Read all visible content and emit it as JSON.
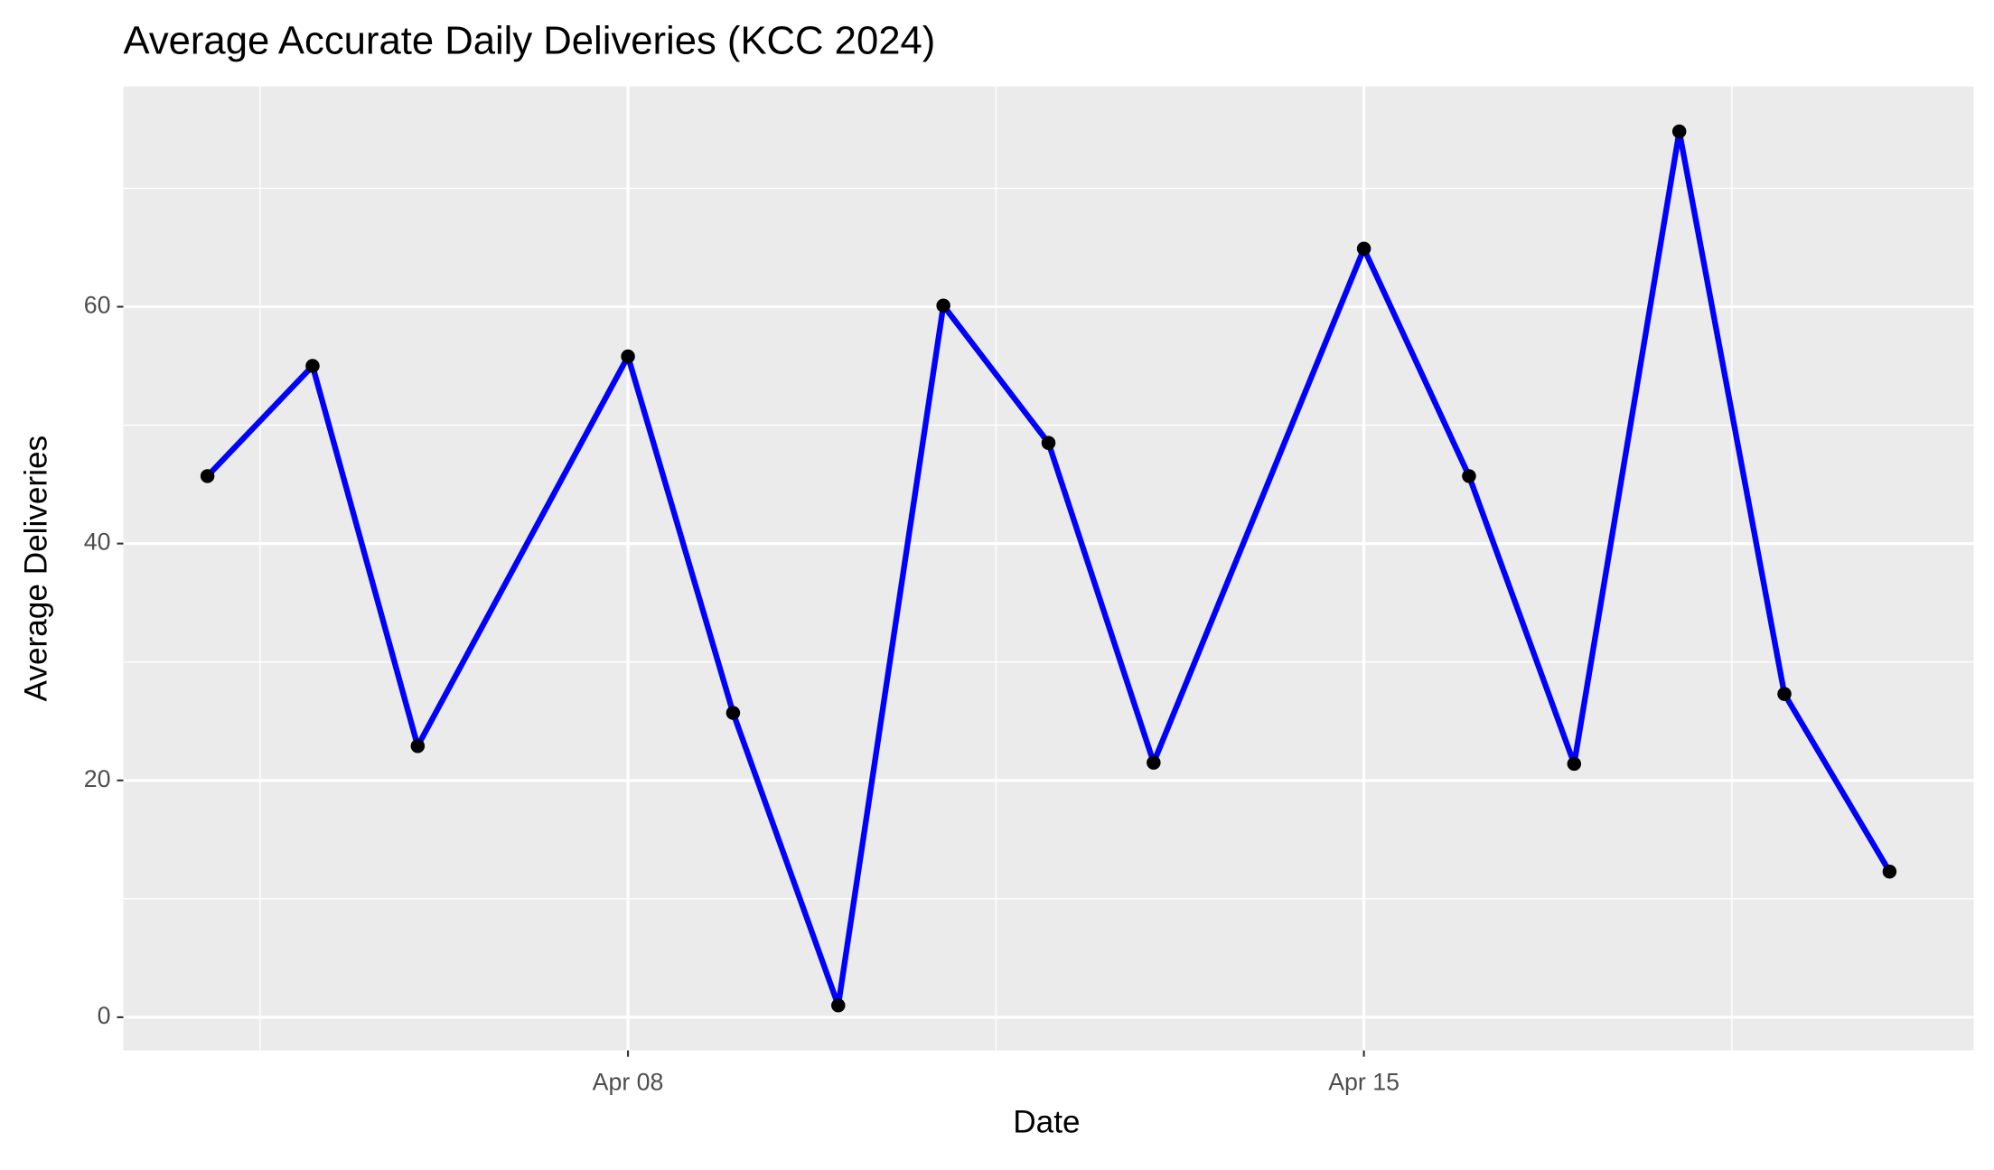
{
  "chart_data": {
    "type": "line",
    "title": "Average Accurate Daily Deliveries (KCC 2024)",
    "x_label": "Date",
    "y_label": "Average Deliveries",
    "x": [
      4,
      5,
      6,
      8,
      9,
      10,
      11,
      12,
      13,
      15,
      16,
      17,
      18,
      19,
      20
    ],
    "values": [
      45.7,
      55.0,
      22.9,
      55.8,
      25.7,
      1.0,
      60.1,
      48.5,
      21.5,
      64.9,
      45.7,
      21.4,
      74.8,
      27.3,
      12.3
    ],
    "color": "#0000ff",
    "point_color": "#000000",
    "xlim": [
      3.2,
      20.8
    ],
    "xticks": [
      {
        "value": 8,
        "label": "Apr 08"
      },
      {
        "value": 15,
        "label": "Apr 15"
      }
    ],
    "ylim": [
      -2.8,
      78.6
    ],
    "yticks": [
      0,
      20,
      40,
      60
    ],
    "grid": true
  }
}
